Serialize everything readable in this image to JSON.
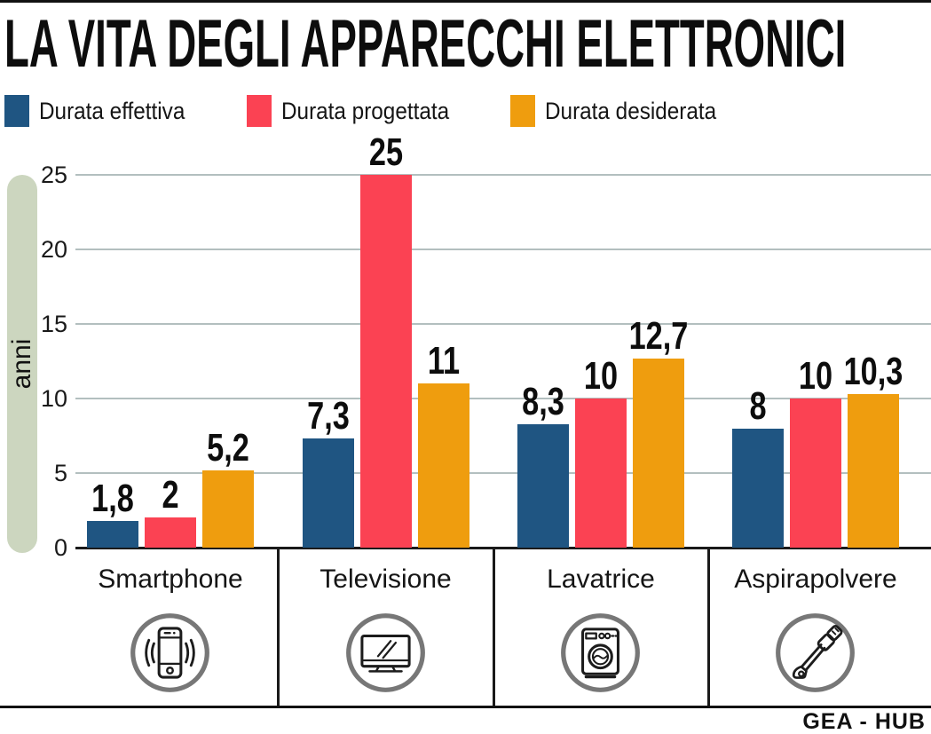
{
  "title": "LA VITA DEGLI APPARECCHI ELETTRONICI",
  "footer": {
    "brand": "GEA - HUB"
  },
  "legend": {
    "items": [
      {
        "label": "Durata effettiva",
        "color": "#1f5582"
      },
      {
        "label": "Durata progettata",
        "color": "#fb4253"
      },
      {
        "label": "Durata desiderata",
        "color": "#ef9d0e"
      }
    ]
  },
  "chart_data": {
    "type": "bar",
    "title": "LA VITA DEGLI APPARECCHI ELETTRONICI",
    "xlabel": "",
    "ylabel": "anni",
    "ylim": [
      0,
      25
    ],
    "yticks": [
      0,
      5,
      10,
      15,
      20,
      25
    ],
    "grid": true,
    "legend_position": "top",
    "categories": [
      "Smartphone",
      "Televisione",
      "Lavatrice",
      "Aspirapolvere"
    ],
    "series": [
      {
        "name": "Durata effettiva",
        "color": "#1f5582",
        "values": [
          1.8,
          7.3,
          8.3,
          8
        ]
      },
      {
        "name": "Durata progettata",
        "color": "#fb4253",
        "values": [
          2,
          25,
          10,
          10
        ]
      },
      {
        "name": "Durata desiderata",
        "color": "#ef9d0e",
        "values": [
          5.2,
          11,
          12.7,
          10.3
        ]
      }
    ],
    "value_labels": [
      [
        "1,8",
        "2",
        "5,2"
      ],
      [
        "7,3",
        "25",
        "11"
      ],
      [
        "8,3",
        "10",
        "12,7"
      ],
      [
        "8",
        "10",
        "10,3"
      ]
    ]
  },
  "icons": [
    {
      "name": "smartphone-icon",
      "category": "Smartphone"
    },
    {
      "name": "tv-icon",
      "category": "Televisione"
    },
    {
      "name": "washing-machine-icon",
      "category": "Lavatrice"
    },
    {
      "name": "vacuum-cleaner-icon",
      "category": "Aspirapolvere"
    }
  ],
  "colors": {
    "accent_bar": "#111111",
    "grid": "#b3bfbf",
    "axis": "#1a1a1a",
    "y_pill": "#ccd6bf",
    "icon_circle": "#777777"
  }
}
